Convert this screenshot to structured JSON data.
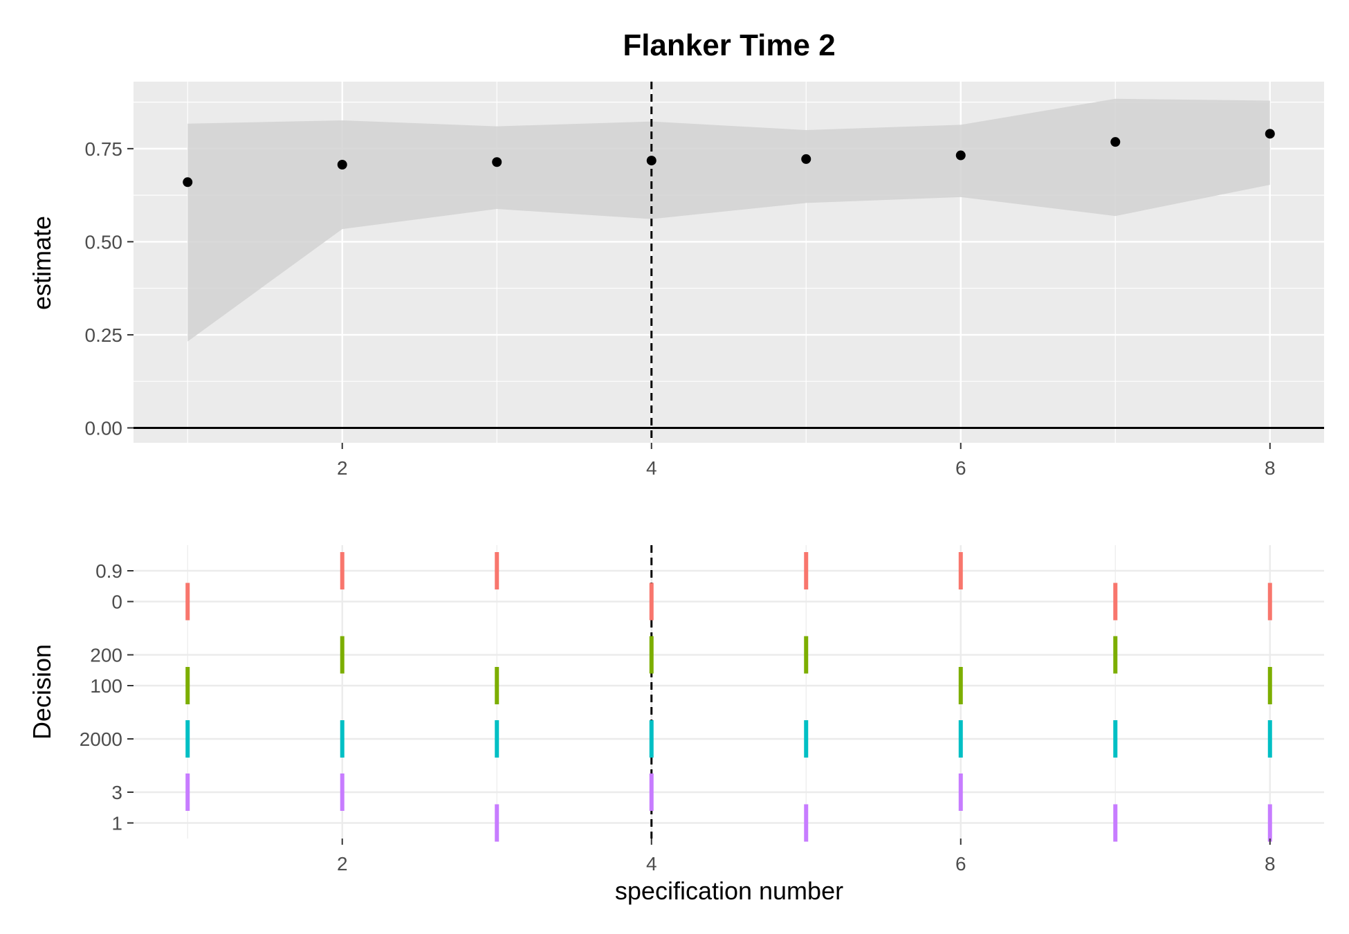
{
  "chart_data": [
    {
      "type": "scatter",
      "title": "Flanker Time 2",
      "xlabel": "",
      "ylabel": "estimate",
      "xlim": [
        0.65,
        8.35
      ],
      "ylim": [
        -0.04,
        0.93
      ],
      "x_ticks": [
        2,
        4,
        6,
        8
      ],
      "y_ticks": [
        0.0,
        0.25,
        0.5,
        0.75
      ],
      "y_tick_labels": [
        "0.00",
        "0.25",
        "0.50",
        "0.75"
      ],
      "grid": true,
      "reference_hline": 0,
      "reference_vline": 4,
      "x": [
        1,
        2,
        3,
        4,
        5,
        6,
        7,
        8
      ],
      "estimate": [
        0.66,
        0.707,
        0.714,
        0.718,
        0.722,
        0.732,
        0.768,
        0.79
      ],
      "ci_upper": [
        0.817,
        0.826,
        0.81,
        0.823,
        0.8,
        0.814,
        0.884,
        0.879
      ],
      "ci_lower": [
        0.232,
        0.534,
        0.588,
        0.561,
        0.604,
        0.62,
        0.569,
        0.653
      ],
      "colors": {
        "panel": "#ebebeb",
        "ribbon": "#d2d2d2",
        "point": "#000000"
      }
    },
    {
      "type": "scatter",
      "title": "",
      "xlabel": "specification number",
      "ylabel": "Decision",
      "xlim": [
        0.65,
        8.35
      ],
      "x_ticks": [
        2,
        4,
        6,
        8
      ],
      "reference_vline": 4,
      "grid": true,
      "categories": [
        "0.9",
        "0",
        "200",
        "100",
        "2000",
        "3",
        "1"
      ],
      "groups": [
        {
          "color": "#F8766D",
          "levels": [
            "0.9",
            "0"
          ],
          "assignment": [
            "0",
            "0.9",
            "0.9",
            "0",
            "0.9",
            "0.9",
            "0",
            "0"
          ]
        },
        {
          "color": "#7CAE00",
          "levels": [
            "200",
            "100"
          ],
          "assignment": [
            "100",
            "200",
            "100",
            "200",
            "200",
            "100",
            "200",
            "100"
          ]
        },
        {
          "color": "#00BFC4",
          "levels": [
            "2000"
          ],
          "assignment": [
            "2000",
            "2000",
            "2000",
            "2000",
            "2000",
            "2000",
            "2000",
            "2000"
          ]
        },
        {
          "color": "#C77CFF",
          "levels": [
            "3",
            "1"
          ],
          "assignment": [
            "3",
            "3",
            "1",
            "3",
            "1",
            "3",
            "1",
            "1"
          ]
        }
      ]
    }
  ]
}
